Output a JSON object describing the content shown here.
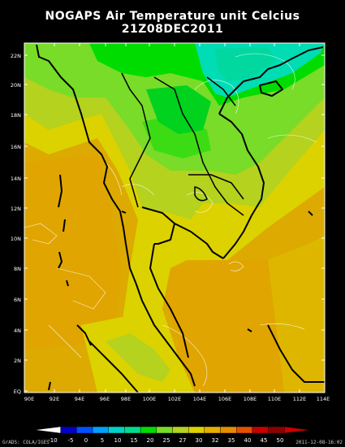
{
  "header": {
    "title": "NOGAPS Air Temperature unit Celcius",
    "timestamp": "21Z08DEC2011"
  },
  "map": {
    "lat_labels": [
      "22N",
      "20N",
      "18N",
      "16N",
      "14N",
      "12N",
      "10N",
      "8N",
      "6N",
      "4N",
      "2N",
      "EQ"
    ],
    "lon_labels": [
      "90E",
      "92E",
      "94E",
      "96E",
      "98E",
      "100E",
      "102E",
      "104E",
      "106E",
      "108E",
      "110E",
      "112E",
      "114E"
    ]
  },
  "colorbar": {
    "labels": [
      "-10",
      "-5",
      "0",
      "5",
      "10",
      "15",
      "20",
      "25",
      "27",
      "30",
      "32",
      "35",
      "40",
      "45",
      "50"
    ],
    "colors": [
      "#ffffff",
      "#0000c8",
      "#0050ff",
      "#00a0ff",
      "#00d2c8",
      "#00dc8c",
      "#00dc00",
      "#78dc28",
      "#b4d21e",
      "#dcd200",
      "#e6af00",
      "#e68c00",
      "#e65000",
      "#c80000",
      "#8c0000",
      "#c80000"
    ]
  },
  "footer": {
    "credit": "GrADS: COLA/IGES",
    "date": "2011-12-08-16:02"
  }
}
